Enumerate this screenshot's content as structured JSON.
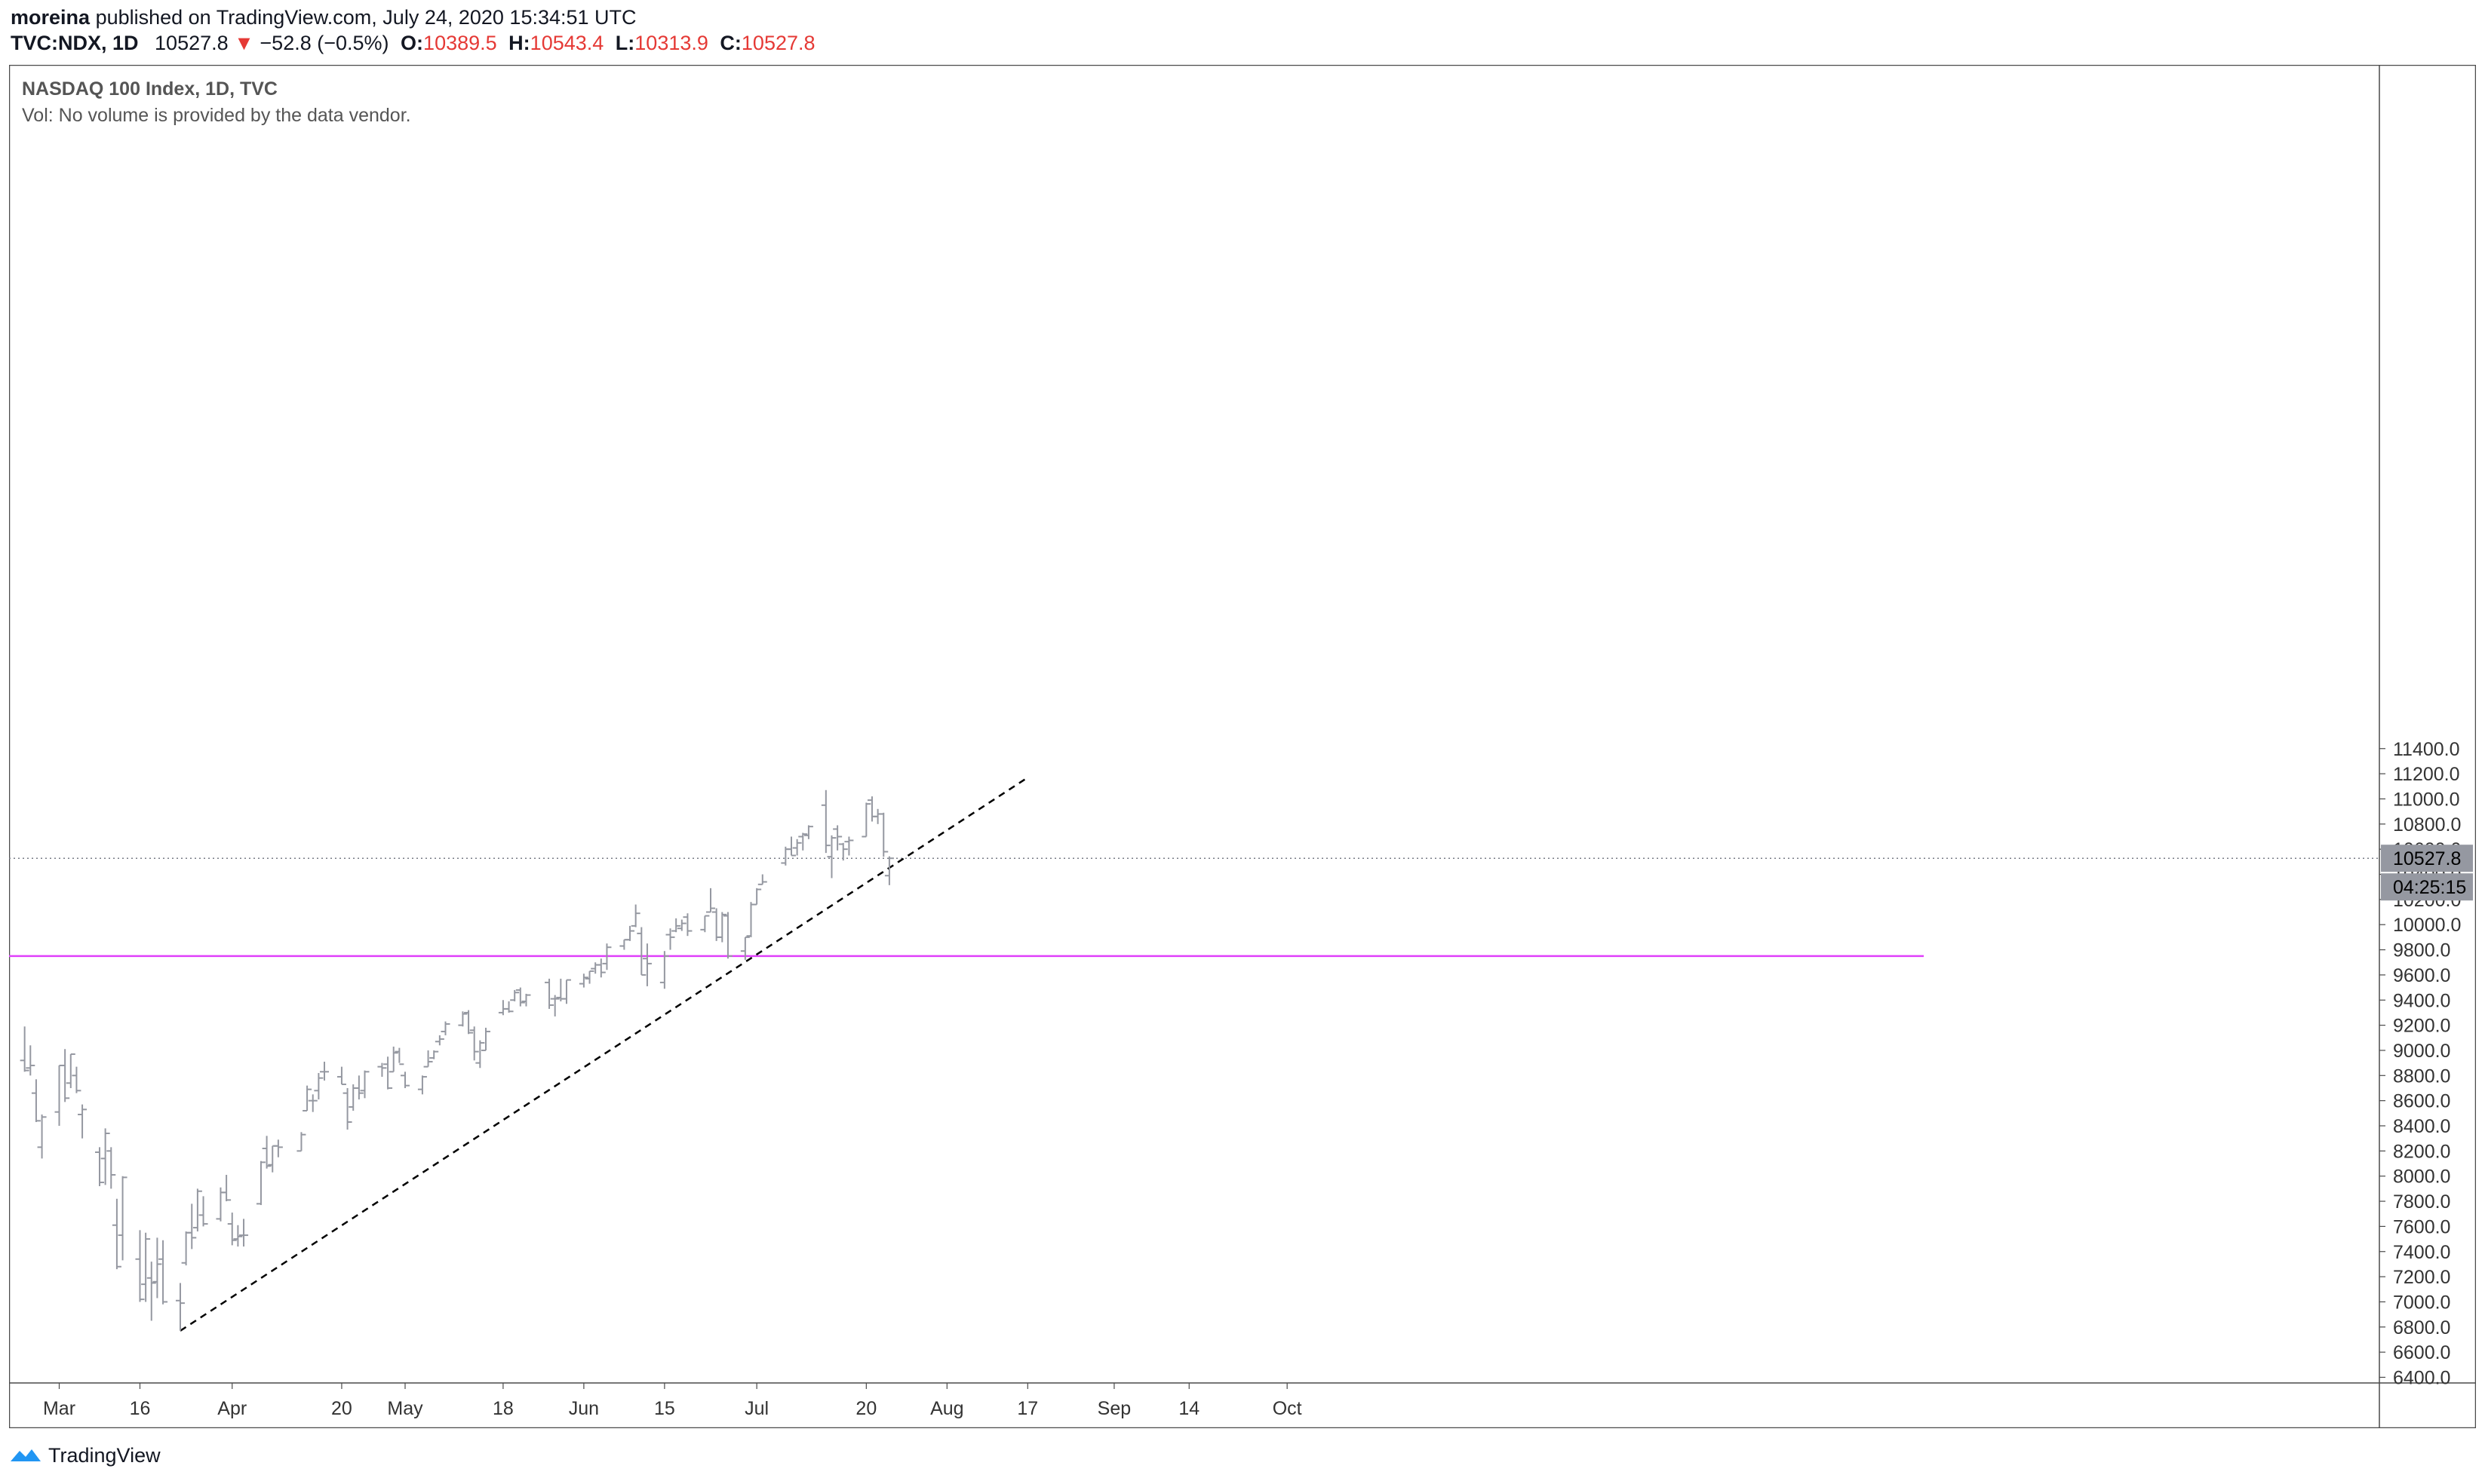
{
  "header": {
    "author": "moreina",
    "published_text": "published on TradingView.com, July 24, 2020 15:34:51 UTC",
    "symbol": "TVC:NDX, 1D",
    "last": "10527.8",
    "change_arrow": "▼",
    "change": "−52.8 (−0.5%)",
    "o_label": "O:",
    "o_value": "10389.5",
    "h_label": "H:",
    "h_value": "10543.4",
    "l_label": "L:",
    "l_value": "10313.9",
    "c_label": "C:",
    "c_value": "10527.8"
  },
  "legend": {
    "title": "NASDAQ 100 Index, 1D, TVC",
    "volume_note": "Vol: No volume is provided by the data vendor."
  },
  "price_badge": "10527.8",
  "timer_badge": "04:25:15",
  "footer": {
    "brand": "TradingView"
  },
  "colors": {
    "bars": "#9598a1",
    "horizontal_level": "#e040fb",
    "trendline": "#000000",
    "badge_bg": "#9598a1",
    "down": "#e53935"
  },
  "chart_data": {
    "type": "ohlc",
    "title": "NASDAQ 100 Index, 1D, TVC",
    "xlabel": "",
    "ylabel": "",
    "ylim": [
      6300,
      11600
    ],
    "y_ticks": [
      6400,
      6600,
      6800,
      7000,
      7200,
      7400,
      7600,
      7800,
      8000,
      8200,
      8400,
      8600,
      8800,
      9000,
      9200,
      9400,
      9600,
      9800,
      10000,
      10200,
      10400,
      10600,
      10800,
      11000,
      11200,
      11400
    ],
    "x_tick_labels": [
      "Mar",
      "16",
      "Apr",
      "20",
      "May",
      "18",
      "Jun",
      "15",
      "Jul",
      "20",
      "Aug",
      "17",
      "Sep",
      "14",
      "Oct"
    ],
    "x_tick_dates": [
      "2020-03-02",
      "2020-03-16",
      "2020-04-01",
      "2020-04-20",
      "2020-05-01",
      "2020-05-18",
      "2020-06-01",
      "2020-06-15",
      "2020-07-01",
      "2020-07-20",
      "2020-08-03",
      "2020-08-17",
      "2020-09-01",
      "2020-09-14",
      "2020-10-01"
    ],
    "grid": false,
    "last_price": 10527.8,
    "horizontal_level": 9750,
    "trendline": {
      "from": [
        "2020-03-23",
        6770
      ],
      "to": [
        "2020-08-17",
        11170
      ]
    },
    "ohlc": [
      [
        "2020-02-25",
        8920,
        9190,
        8830,
        8840
      ],
      [
        "2020-02-26",
        8860,
        9040,
        8800,
        8880
      ],
      [
        "2020-02-27",
        8660,
        8770,
        8430,
        8440
      ],
      [
        "2020-02-28",
        8230,
        8490,
        8140,
        8470
      ],
      [
        "2020-03-02",
        8510,
        8880,
        8400,
        8880
      ],
      [
        "2020-03-03",
        8880,
        9010,
        8590,
        8620
      ],
      [
        "2020-03-04",
        8740,
        8970,
        8700,
        8970
      ],
      [
        "2020-03-05",
        8800,
        8870,
        8660,
        8680
      ],
      [
        "2020-03-06",
        8490,
        8570,
        8300,
        8530
      ],
      [
        "2020-03-09",
        8190,
        8230,
        7920,
        7950
      ],
      [
        "2020-03-10",
        8140,
        8380,
        7930,
        8340
      ],
      [
        "2020-03-11",
        8200,
        8230,
        7900,
        8010
      ],
      [
        "2020-03-12",
        7610,
        7820,
        7260,
        7280
      ],
      [
        "2020-03-13",
        7530,
        8000,
        7330,
        7990
      ],
      [
        "2020-03-16",
        7340,
        7570,
        7000,
        7020
      ],
      [
        "2020-03-17",
        7140,
        7550,
        7000,
        7500
      ],
      [
        "2020-03-18",
        7190,
        7320,
        6850,
        7150
      ],
      [
        "2020-03-19",
        7160,
        7510,
        7030,
        7300
      ],
      [
        "2020-03-20",
        7340,
        7490,
        6980,
        7000
      ],
      [
        "2020-03-23",
        7010,
        7150,
        6770,
        6990
      ],
      [
        "2020-03-24",
        7310,
        7560,
        7290,
        7550
      ],
      [
        "2020-03-25",
        7550,
        7780,
        7420,
        7510
      ],
      [
        "2020-03-26",
        7590,
        7900,
        7560,
        7880
      ],
      [
        "2020-03-27",
        7690,
        7840,
        7600,
        7620
      ],
      [
        "2020-03-30",
        7660,
        7910,
        7640,
        7870
      ],
      [
        "2020-03-31",
        7870,
        8010,
        7800,
        7810
      ],
      [
        "2020-04-01",
        7620,
        7710,
        7450,
        7490
      ],
      [
        "2020-04-02",
        7500,
        7610,
        7440,
        7520
      ],
      [
        "2020-04-03",
        7530,
        7660,
        7440,
        7530
      ],
      [
        "2020-04-06",
        7780,
        8120,
        7770,
        8110
      ],
      [
        "2020-04-07",
        8220,
        8320,
        8060,
        8080
      ],
      [
        "2020-04-08",
        8090,
        8240,
        8030,
        8240
      ],
      [
        "2020-04-09",
        8240,
        8290,
        8150,
        8230
      ],
      [
        "2020-04-13",
        8200,
        8350,
        8200,
        8330
      ],
      [
        "2020-04-14",
        8520,
        8720,
        8520,
        8690
      ],
      [
        "2020-04-15",
        8600,
        8650,
        8510,
        8600
      ],
      [
        "2020-04-16",
        8680,
        8820,
        8610,
        8780
      ],
      [
        "2020-04-17",
        8830,
        8910,
        8760,
        8830
      ],
      [
        "2020-04-20",
        8790,
        8870,
        8730,
        8730
      ],
      [
        "2020-04-21",
        8660,
        8700,
        8370,
        8430
      ],
      [
        "2020-04-22",
        8550,
        8730,
        8520,
        8700
      ],
      [
        "2020-04-23",
        8700,
        8800,
        8610,
        8660
      ],
      [
        "2020-04-24",
        8680,
        8840,
        8620,
        8830
      ],
      [
        "2020-04-27",
        8870,
        8900,
        8790,
        8860
      ],
      [
        "2020-04-28",
        8890,
        8950,
        8690,
        8700
      ],
      [
        "2020-04-29",
        8830,
        9030,
        8830,
        8980
      ],
      [
        "2020-04-30",
        8990,
        9020,
        8900,
        8890
      ],
      [
        "2020-05-01",
        8800,
        8830,
        8700,
        8720
      ],
      [
        "2020-05-04",
        8690,
        8800,
        8650,
        8790
      ],
      [
        "2020-05-05",
        8870,
        9000,
        8870,
        8910
      ],
      [
        "2020-05-06",
        8940,
        9000,
        8930,
        8990
      ],
      [
        "2020-05-07",
        9070,
        9120,
        9040,
        9090
      ],
      [
        "2020-05-08",
        9150,
        9230,
        9120,
        9210
      ],
      [
        "2020-05-11",
        9200,
        9310,
        9190,
        9290
      ],
      [
        "2020-05-12",
        9300,
        9320,
        9130,
        9140
      ],
      [
        "2020-05-13",
        9160,
        9190,
        8920,
        8990
      ],
      [
        "2020-05-14",
        8900,
        9080,
        8860,
        9060
      ],
      [
        "2020-05-15",
        9000,
        9180,
        9000,
        9150
      ],
      [
        "2020-05-18",
        9300,
        9400,
        9280,
        9330
      ],
      [
        "2020-05-19",
        9330,
        9390,
        9300,
        9310
      ],
      [
        "2020-05-20",
        9400,
        9480,
        9390,
        9460
      ],
      [
        "2020-05-21",
        9480,
        9500,
        9350,
        9380
      ],
      [
        "2020-05-22",
        9390,
        9450,
        9350,
        9440
      ],
      [
        "2020-05-26",
        9540,
        9570,
        9330,
        9360
      ],
      [
        "2020-05-27",
        9410,
        9440,
        9270,
        9410
      ],
      [
        "2020-05-28",
        9420,
        9570,
        9390,
        9410
      ],
      [
        "2020-05-29",
        9410,
        9560,
        9370,
        9560
      ],
      [
        "2020-06-01",
        9530,
        9610,
        9500,
        9580
      ],
      [
        "2020-06-02",
        9570,
        9630,
        9530,
        9630
      ],
      [
        "2020-06-03",
        9650,
        9700,
        9610,
        9680
      ],
      [
        "2020-06-04",
        9680,
        9730,
        9580,
        9620
      ],
      [
        "2020-06-05",
        9690,
        9850,
        9640,
        9820
      ],
      [
        "2020-06-08",
        9830,
        9880,
        9800,
        9880
      ],
      [
        "2020-06-09",
        9880,
        9990,
        9870,
        9950
      ],
      [
        "2020-06-10",
        9990,
        10160,
        9980,
        10090
      ],
      [
        "2020-06-11",
        9930,
        9980,
        9600,
        9600
      ],
      [
        "2020-06-12",
        9730,
        9850,
        9510,
        9690
      ],
      [
        "2020-06-15",
        9540,
        9790,
        9490,
        9750
      ],
      [
        "2020-06-16",
        9920,
        9970,
        9800,
        9900
      ],
      [
        "2020-06-17",
        9950,
        10050,
        9940,
        9990
      ],
      [
        "2020-06-18",
        9970,
        10040,
        9950,
        10010
      ],
      [
        "2020-06-19",
        10060,
        10090,
        9910,
        9950
      ],
      [
        "2020-06-22",
        9960,
        10070,
        9940,
        10070
      ],
      [
        "2020-06-23",
        10100,
        10290,
        10100,
        10130
      ],
      [
        "2020-06-24",
        10100,
        10130,
        9870,
        9900
      ],
      [
        "2020-06-25",
        9900,
        10100,
        9860,
        10080
      ],
      [
        "2020-06-26",
        10070,
        10100,
        9730,
        9750
      ],
      [
        "2020-06-29",
        9790,
        9900,
        9720,
        9900
      ],
      [
        "2020-06-30",
        9910,
        10180,
        9900,
        10160
      ],
      [
        "2020-07-01",
        10160,
        10290,
        10160,
        10280
      ],
      [
        "2020-07-02",
        10320,
        10400,
        10320,
        10340
      ],
      [
        "2020-07-06",
        10490,
        10620,
        10470,
        10600
      ],
      [
        "2020-07-07",
        10600,
        10700,
        10550,
        10550
      ],
      [
        "2020-07-08",
        10610,
        10680,
        10550,
        10650
      ],
      [
        "2020-07-09",
        10700,
        10730,
        10590,
        10720
      ],
      [
        "2020-07-10",
        10710,
        10790,
        10680,
        10780
      ],
      [
        "2020-07-13",
        10950,
        11070,
        10570,
        10630
      ],
      [
        "2020-07-14",
        10540,
        10710,
        10370,
        10690
      ],
      [
        "2020-07-15",
        10760,
        10790,
        10590,
        10700
      ],
      [
        "2020-07-16",
        10640,
        10650,
        10510,
        10600
      ],
      [
        "2020-07-17",
        10660,
        10700,
        10550,
        10670
      ],
      [
        "2020-07-20",
        10700,
        10970,
        10700,
        10960
      ],
      [
        "2020-07-21",
        10990,
        11020,
        10820,
        10860
      ],
      [
        "2020-07-22",
        10860,
        10920,
        10800,
        10880
      ],
      [
        "2020-07-23",
        10880,
        10890,
        10540,
        10580
      ],
      [
        "2020-07-24",
        10389.5,
        10543.4,
        10313.9,
        10527.8
      ]
    ]
  }
}
